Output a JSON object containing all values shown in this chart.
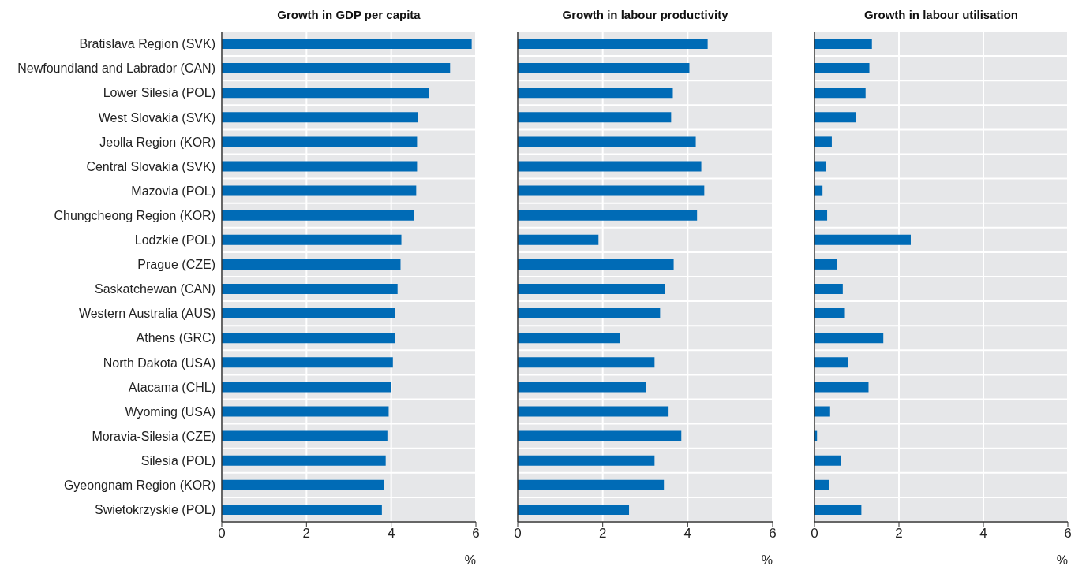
{
  "chart_data": [
    {
      "type": "bar",
      "orientation": "horizontal",
      "title": "Growth in GDP per capita",
      "xlabel": "%",
      "color": "#006bb6",
      "grid": true,
      "xlim": [
        0,
        6
      ],
      "xticks": [
        0,
        2,
        4,
        6
      ],
      "categories": [
        "Bratislava Region (SVK)",
        "Newfoundland and Labrador (CAN)",
        "Lower Silesia  (POL)",
        "West Slovakia (SVK)",
        "Jeolla Region (KOR)",
        "Central Slovakia (SVK)",
        "Mazovia (POL)",
        "Chungcheong Region (KOR)",
        "Lodzkie (POL)",
        "Prague (CZE)",
        "Saskatchewan (CAN)",
        "Western Australia (AUS)",
        "Athens (GRC)",
        "North Dakota (USA)",
        "Atacama (CHL)",
        "Wyoming (USA)",
        "Moravia-Silesia (CZE)",
        "Silesia (POL)",
        "Gyeongnam Region (KOR)",
        "Swietokrzyskie (POL)"
      ],
      "values": [
        5.9,
        5.39,
        4.89,
        4.63,
        4.61,
        4.61,
        4.59,
        4.54,
        4.24,
        4.22,
        4.15,
        4.09,
        4.09,
        4.04,
        4.0,
        3.94,
        3.91,
        3.87,
        3.83,
        3.78
      ]
    },
    {
      "type": "bar",
      "orientation": "horizontal",
      "title": "Growth in labour productivity",
      "xlabel": "%",
      "color": "#006bb6",
      "grid": true,
      "xlim": [
        0,
        6
      ],
      "xticks": [
        0,
        2,
        4,
        6
      ],
      "tick_labels": "x",
      "categories": [
        "Bratislava Region (SVK)",
        "Newfoundland and Labrador (CAN)",
        "Lower Silesia  (POL)",
        "West Slovakia (SVK)",
        "Jeolla Region (KOR)",
        "Central Slovakia (SVK)",
        "Mazovia (POL)",
        "Chungcheong Region (KOR)",
        "Lodzkie (POL)",
        "Prague (CZE)",
        "Saskatchewan (CAN)",
        "Western Australia (AUS)",
        "Athens (GRC)",
        "North Dakota (USA)",
        "Atacama (CHL)",
        "Wyoming (USA)",
        "Moravia-Silesia (CZE)",
        "Silesia (POL)",
        "Gyeongnam Region (KOR)",
        "Swietokrzyskie (POL)"
      ],
      "values": [
        4.47,
        4.04,
        3.65,
        3.61,
        4.19,
        4.32,
        4.39,
        4.22,
        1.9,
        3.67,
        3.46,
        3.35,
        2.4,
        3.22,
        3.01,
        3.55,
        3.85,
        3.22,
        3.44,
        2.62
      ]
    },
    {
      "type": "bar",
      "orientation": "horizontal",
      "title": "Growth in labour utilisation",
      "xlabel": "%",
      "color": "#006bb6",
      "grid": true,
      "xlim": [
        0,
        6
      ],
      "xticks": [
        0,
        2,
        4,
        6
      ],
      "tick_labels": "x",
      "categories": [
        "Bratislava Region (SVK)",
        "Newfoundland and Labrador (CAN)",
        "Lower Silesia  (POL)",
        "West Slovakia (SVK)",
        "Jeolla Region (KOR)",
        "Central Slovakia (SVK)",
        "Mazovia (POL)",
        "Chungcheong Region (KOR)",
        "Lodzkie (POL)",
        "Prague (CZE)",
        "Saskatchewan (CAN)",
        "Western Australia (AUS)",
        "Athens (GRC)",
        "North Dakota (USA)",
        "Atacama (CHL)",
        "Wyoming (USA)",
        "Moravia-Silesia (CZE)",
        "Silesia (POL)",
        "Gyeongnam Region (KOR)",
        "Swietokrzyskie (POL)"
      ],
      "values": [
        1.36,
        1.3,
        1.21,
        0.98,
        0.41,
        0.28,
        0.19,
        0.3,
        2.28,
        0.54,
        0.67,
        0.72,
        1.63,
        0.8,
        1.28,
        0.37,
        0.06,
        0.63,
        0.35,
        1.11
      ]
    }
  ]
}
